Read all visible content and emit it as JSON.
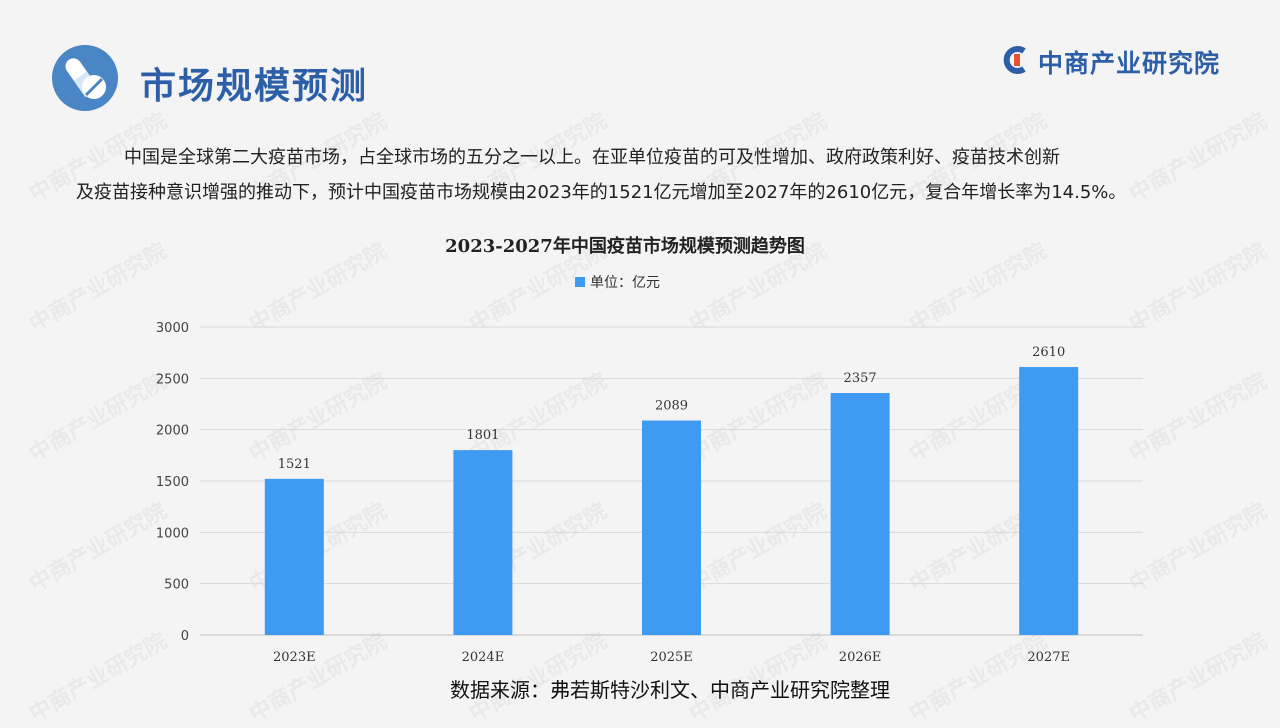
{
  "header": {
    "title": "市场规模预测",
    "icon": "capsule-pill-icon",
    "brand_name": "中商产业研究院",
    "brand_icon": "c-ring-logo-icon",
    "accent_color": "#2d5fa8"
  },
  "intro": {
    "line1": "中国是全球第二大疫苗市场，占全球市场的五分之一以上。在亚单位疫苗的可及性增加、政府政策利好、疫苗技术创新",
    "line2": "及疫苗接种意识增强的推动下，预计中国疫苗市场规模由2023年的1521亿元增加至2027年的2610亿元，复合年增长率为14.5%。"
  },
  "chart_data": {
    "type": "bar",
    "title": "2023-2027年中国疫苗市场规模预测趋势图",
    "categories": [
      "2023E",
      "2024E",
      "2025E",
      "2026E",
      "2027E"
    ],
    "series": [
      {
        "name": "单位：亿元",
        "values": [
          1521,
          1801,
          2089,
          2357,
          2610
        ],
        "color": "#3f9bf2"
      }
    ],
    "yticks": [
      0,
      500,
      1000,
      1500,
      2000,
      2500,
      3000
    ],
    "ylim": [
      0,
      3000
    ],
    "grid": true,
    "legend": "top-center",
    "data_labels": true
  },
  "source": "数据来源：弗若斯特沙利文、中商产业研究院整理",
  "watermark": "中商产业研究院"
}
